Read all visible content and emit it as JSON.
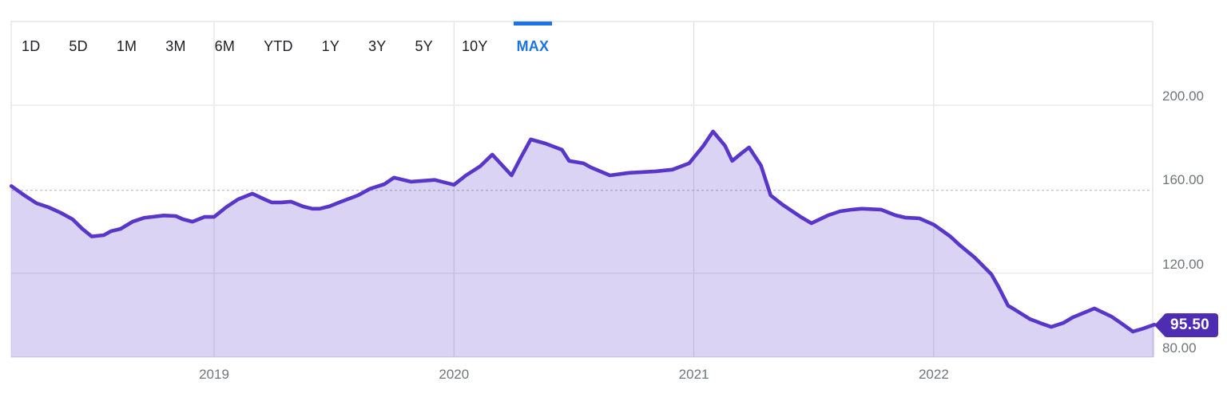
{
  "colors": {
    "accent_blue": "#1a73e8",
    "line_purple": "#5736c9",
    "fill_purple": "rgba(87,54,201,0.22)",
    "badge_purple": "#4e2db2",
    "tab_text": "#202124",
    "axis_text": "#717579",
    "grid_h": "#e8eaed",
    "grid_v": "#d9dbde",
    "frame": "#e2e4e7",
    "dashed": "#c3c8cd",
    "bg": "#ffffff"
  },
  "tabs": {
    "items": [
      {
        "label": "1D",
        "active": false
      },
      {
        "label": "5D",
        "active": false
      },
      {
        "label": "1M",
        "active": false
      },
      {
        "label": "3M",
        "active": false
      },
      {
        "label": "6M",
        "active": false
      },
      {
        "label": "YTD",
        "active": false
      },
      {
        "label": "1Y",
        "active": false
      },
      {
        "label": "3Y",
        "active": false
      },
      {
        "label": "5Y",
        "active": false
      },
      {
        "label": "10Y",
        "active": false
      },
      {
        "label": "MAX",
        "active": true
      }
    ]
  },
  "chart_data": {
    "type": "area",
    "x_ticks": {
      "labels": [
        "2019",
        "2020",
        "2021",
        "2022"
      ],
      "values": [
        2019,
        2020,
        2021,
        2022
      ]
    },
    "y_ticks": {
      "labels": [
        "200.00",
        "160.00",
        "120.00",
        "80.00"
      ],
      "values": [
        200,
        160,
        120,
        80
      ]
    },
    "xlim": [
      2018.155,
      2022.92
    ],
    "ylim": [
      80,
      240
    ],
    "grid": true,
    "legend": false,
    "baseline_dashed_value": 159.5,
    "last_price": 95.5,
    "last_price_label": "95.50",
    "series": [
      {
        "name": "price",
        "points": [
          [
            2018.155,
            161.5
          ],
          [
            2018.21,
            157.0
          ],
          [
            2018.26,
            153.3
          ],
          [
            2018.31,
            151.4
          ],
          [
            2018.36,
            148.8
          ],
          [
            2018.41,
            145.7
          ],
          [
            2018.45,
            141.2
          ],
          [
            2018.49,
            137.5
          ],
          [
            2018.54,
            138.1
          ],
          [
            2018.57,
            140.0
          ],
          [
            2018.61,
            141.1
          ],
          [
            2018.66,
            144.5
          ],
          [
            2018.71,
            146.4
          ],
          [
            2018.74,
            146.8
          ],
          [
            2018.79,
            147.5
          ],
          [
            2018.84,
            147.2
          ],
          [
            2018.87,
            145.7
          ],
          [
            2018.91,
            144.5
          ],
          [
            2018.96,
            146.8
          ],
          [
            2019.0,
            146.8
          ],
          [
            2019.05,
            151.4
          ],
          [
            2019.1,
            155.2
          ],
          [
            2019.16,
            157.9
          ],
          [
            2019.21,
            155.2
          ],
          [
            2019.24,
            153.7
          ],
          [
            2019.28,
            153.7
          ],
          [
            2019.32,
            154.1
          ],
          [
            2019.37,
            151.8
          ],
          [
            2019.41,
            150.7
          ],
          [
            2019.44,
            150.7
          ],
          [
            2019.48,
            151.8
          ],
          [
            2019.53,
            154.1
          ],
          [
            2019.6,
            157.1
          ],
          [
            2019.65,
            160.2
          ],
          [
            2019.71,
            162.4
          ],
          [
            2019.75,
            165.5
          ],
          [
            2019.82,
            163.6
          ],
          [
            2019.87,
            164.0
          ],
          [
            2019.92,
            164.4
          ],
          [
            2020.0,
            162.1
          ],
          [
            2020.05,
            166.6
          ],
          [
            2020.11,
            171.0
          ],
          [
            2020.16,
            176.5
          ],
          [
            2020.24,
            166.6
          ],
          [
            2020.28,
            175.4
          ],
          [
            2020.32,
            183.7
          ],
          [
            2020.38,
            181.8
          ],
          [
            2020.45,
            178.8
          ],
          [
            2020.48,
            173.5
          ],
          [
            2020.54,
            172.3
          ],
          [
            2020.57,
            170.4
          ],
          [
            2020.65,
            166.6
          ],
          [
            2020.73,
            167.8
          ],
          [
            2020.84,
            168.5
          ],
          [
            2020.91,
            169.3
          ],
          [
            2020.98,
            172.3
          ],
          [
            2021.04,
            180.7
          ],
          [
            2021.08,
            187.5
          ],
          [
            2021.13,
            180.7
          ],
          [
            2021.16,
            173.5
          ],
          [
            2021.2,
            177.3
          ],
          [
            2021.23,
            179.9
          ],
          [
            2021.28,
            171.2
          ],
          [
            2021.32,
            157.1
          ],
          [
            2021.37,
            152.6
          ],
          [
            2021.4,
            150.3
          ],
          [
            2021.45,
            146.5
          ],
          [
            2021.49,
            143.8
          ],
          [
            2021.56,
            147.6
          ],
          [
            2021.61,
            149.5
          ],
          [
            2021.66,
            150.3
          ],
          [
            2021.7,
            150.7
          ],
          [
            2021.78,
            150.3
          ],
          [
            2021.84,
            147.6
          ],
          [
            2021.88,
            146.5
          ],
          [
            2021.94,
            146.1
          ],
          [
            2022.0,
            143.1
          ],
          [
            2022.07,
            137.4
          ],
          [
            2022.11,
            133.2
          ],
          [
            2022.17,
            127.5
          ],
          [
            2022.24,
            119.5
          ],
          [
            2022.27,
            113.5
          ],
          [
            2022.31,
            104.5
          ],
          [
            2022.33,
            103.2
          ],
          [
            2022.4,
            98.2
          ],
          [
            2022.45,
            96.0
          ],
          [
            2022.49,
            94.4
          ],
          [
            2022.54,
            96.3
          ],
          [
            2022.58,
            99.0
          ],
          [
            2022.67,
            103.2
          ],
          [
            2022.74,
            99.4
          ],
          [
            2022.78,
            96.3
          ],
          [
            2022.83,
            92.2
          ],
          [
            2022.87,
            93.5
          ],
          [
            2022.92,
            95.5
          ]
        ]
      }
    ]
  }
}
